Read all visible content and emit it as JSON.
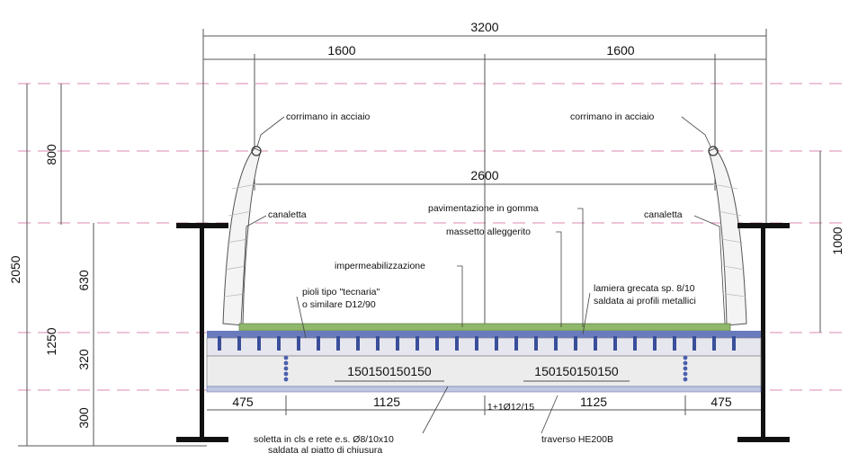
{
  "dimensions": {
    "total_width": "3200",
    "half_left": "1600",
    "half_right": "1600",
    "inner_width": "2600",
    "total_height": "2050",
    "rail_height": "800",
    "parapet_height": "1250",
    "web_upper": "630",
    "web_mid": "320",
    "web_lower": "300",
    "right_height": "1000",
    "edge_left": "475",
    "bay_left": "1125",
    "bay_right": "1125",
    "edge_right": "475",
    "spacing_left": "150150150150",
    "spacing_right": "150150150150",
    "rebar_note": "1+1Ø12/15"
  },
  "labels": {
    "handrail_left": "corrimano in acciaio",
    "handrail_right": "corrimano in acciaio",
    "gutter_left": "canaletta",
    "gutter_right": "canaletta",
    "rubber_floor": "pavimentazione in gomma",
    "screed": "massetto alleggerito",
    "waterproofing": "impermeabilizzazione",
    "studs": "pioli tipo \"tecnaria\"",
    "studs_2": "o similare D12/90",
    "plate": "lamiera grecata sp. 8/10",
    "plate_2": "saldata ai profili metallici",
    "slab": "soletta in cls e rete e.s. Ø8/10x10",
    "slab_2": "saldata al piatto di chiusura",
    "crossbeam": "traverso HE200B"
  },
  "colors": {
    "steel": "#111111",
    "guide": "#e2a0c0",
    "deck_green": "#8fb86a",
    "deck_blue": "#5a6fb0",
    "slab_fill": "#dcdcdc"
  }
}
